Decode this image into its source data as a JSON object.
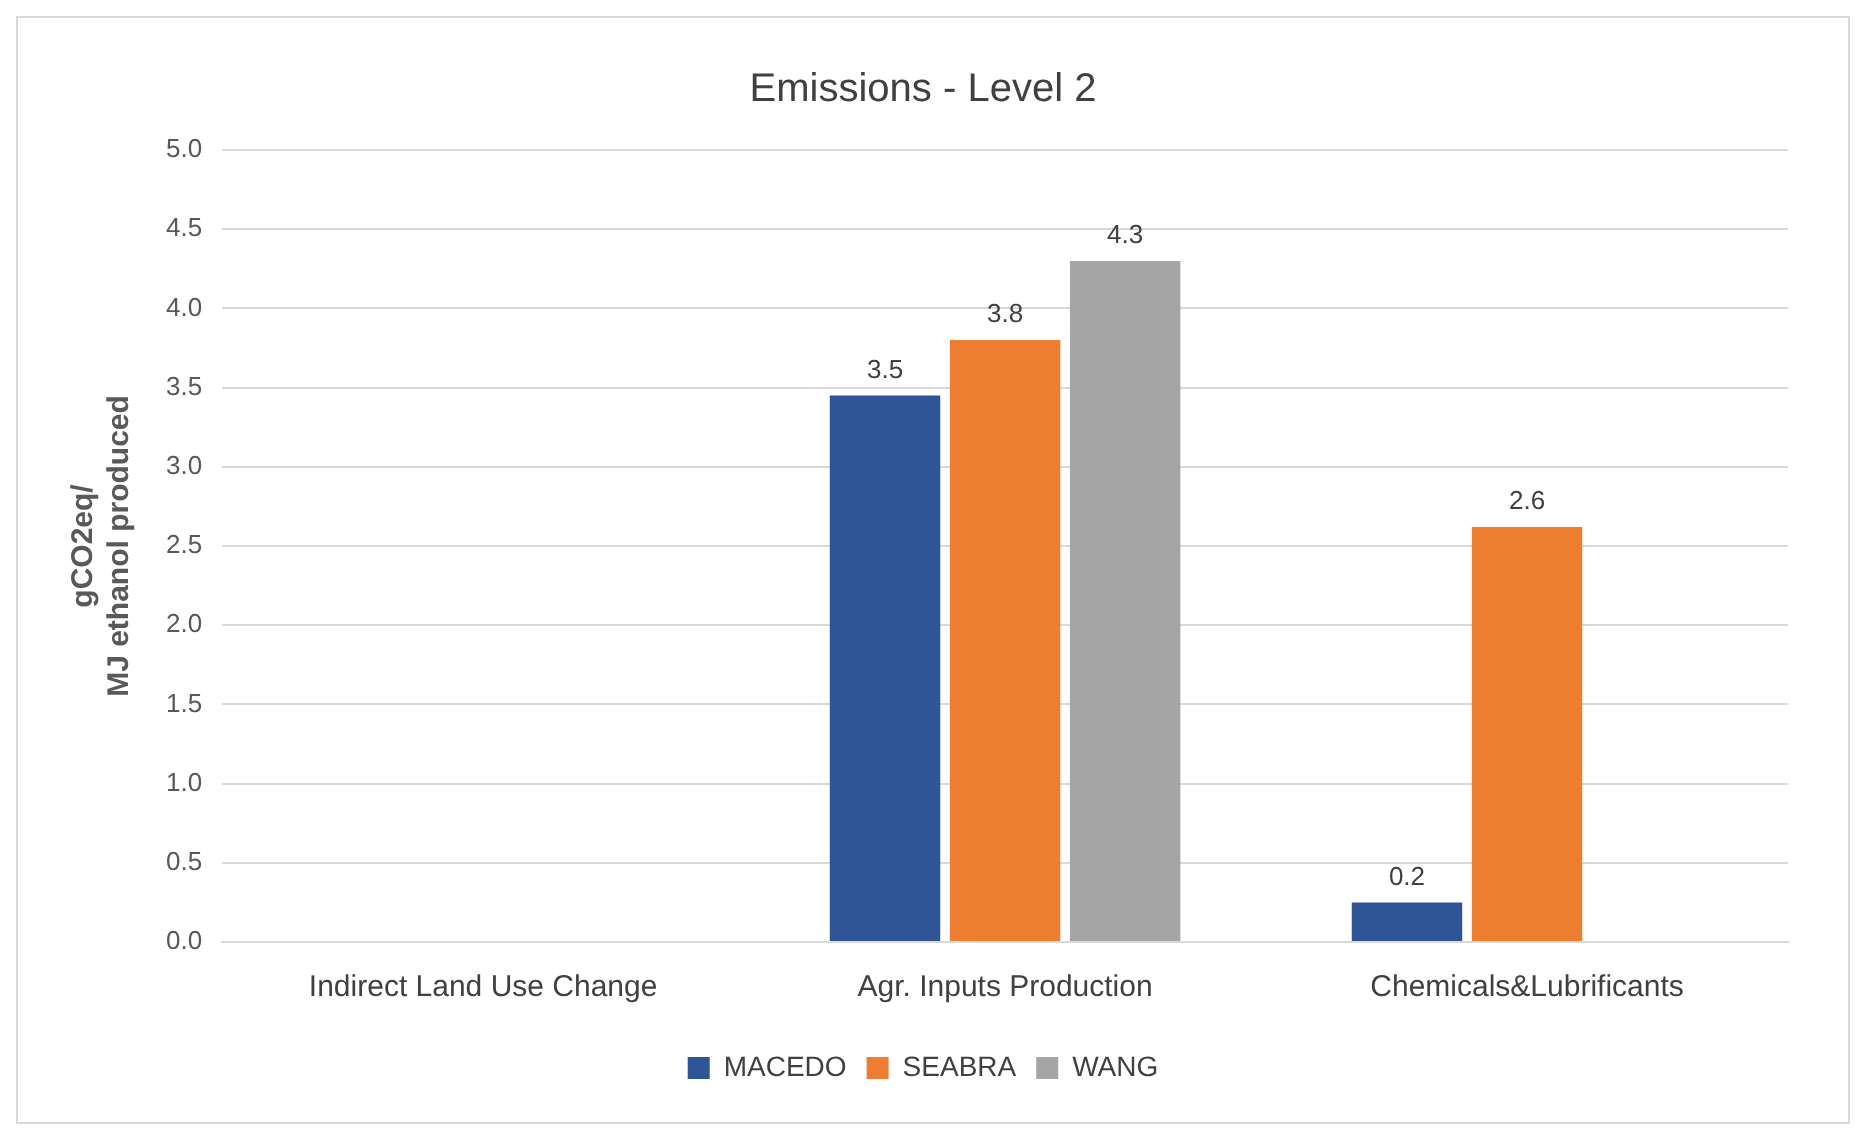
{
  "chart_data": {
    "type": "bar",
    "title": "Emissions - Level 2",
    "ylabel": "gCO2eq/\nMJ ethanol produced",
    "categories": [
      "Indirect Land Use Change",
      "Agr. Inputs Production",
      "Chemicals&Lubrificants"
    ],
    "series": [
      {
        "name": "MACEDO",
        "color": "#2f5597",
        "values": [
          null,
          3.45,
          0.25
        ],
        "value_labels": [
          null,
          "3.5",
          "0.2"
        ]
      },
      {
        "name": "SEABRA",
        "color": "#ed7d31",
        "values": [
          null,
          3.8,
          2.62
        ],
        "value_labels": [
          null,
          "3.8",
          "2.6"
        ]
      },
      {
        "name": "WANG",
        "color": "#a5a5a5",
        "values": [
          null,
          4.3,
          null
        ],
        "value_labels": [
          null,
          "4.3",
          null
        ]
      }
    ],
    "ylim": [
      0,
      5
    ],
    "yticks": [
      "0.0",
      "0.5",
      "1.0",
      "1.5",
      "2.0",
      "2.5",
      "3.0",
      "3.5",
      "4.0",
      "4.5",
      "5.0"
    ],
    "grid": "y",
    "legend": "bottom"
  }
}
